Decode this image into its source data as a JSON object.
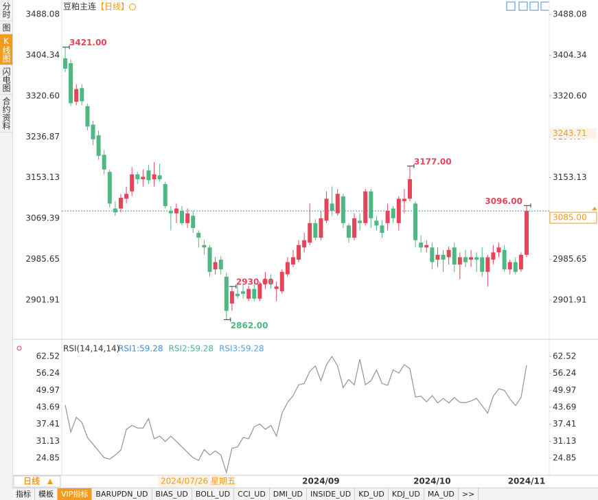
{
  "sidebar_tabs": [
    "分时",
    "图",
    "K线图",
    "闪电图",
    "合约资料"
  ],
  "header": {
    "symbol": "豆粕主连",
    "period": "【日线】"
  },
  "footer": {
    "period_button": "日线",
    "cursor_date": "2024/07/26 星期五",
    "tabs": [
      "指标",
      "模板",
      "VIP指标",
      "BARUPDN_UD",
      "BIAS_UD",
      "BOLL_UD",
      "CCI_UD",
      "DMI_UD",
      "INSIDE_UD",
      "KD_UD",
      "KDJ_UD",
      "MA_UD",
      ">>"
    ]
  },
  "chart_data": [
    {
      "type": "candlestick",
      "categories": [
        null,
        null,
        null,
        null,
        null,
        null,
        null,
        null,
        null,
        null,
        null,
        null,
        null,
        null,
        null,
        null,
        null,
        null,
        null,
        null,
        null,
        null,
        null,
        null,
        null,
        null,
        null,
        null,
        null,
        null,
        null,
        null,
        null,
        null,
        null,
        null,
        null,
        null,
        null,
        null,
        null,
        null,
        null,
        "2024/09",
        null,
        null,
        null,
        null,
        null,
        null,
        null,
        null,
        null,
        null,
        null,
        null,
        null,
        null,
        null,
        null,
        null,
        null,
        null,
        "2024/10",
        null,
        null,
        null,
        null,
        null,
        null,
        null,
        null,
        null,
        null,
        null,
        null,
        null,
        null,
        null,
        null,
        "2024/11",
        null,
        null,
        null
      ],
      "open": [
        3398,
        3388,
        3309,
        3337,
        3300,
        3262,
        3240,
        3200,
        3165,
        3090,
        3090,
        3110,
        3125,
        3160,
        3150,
        3168,
        3150,
        3158,
        3140,
        3085,
        3080,
        3085,
        3060,
        3075,
        3040,
        3015,
        3010,
        2965,
        2985,
        2950,
        2895,
        2915,
        2920,
        2905,
        2925,
        2905,
        2935,
        2945,
        2925,
        2920,
        2955,
        2975,
        2985,
        3010,
        3020,
        3060,
        3030,
        3065,
        3100,
        3080,
        3115,
        3055,
        3030,
        3065,
        3060,
        3125,
        3065,
        3055,
        3060,
        3090,
        3060,
        3105,
        3110,
        3100,
        3020,
        3010,
        3010,
        2985,
        2995,
        2990,
        3010,
        2975,
        2990,
        2985,
        2990,
        2990,
        2960,
        2985,
        3000,
        3005,
        2965,
        2980,
        2965,
        2995
      ],
      "high": [
        3421,
        3395,
        3345,
        3345,
        3305,
        3270,
        3250,
        3210,
        3170,
        3105,
        3120,
        3135,
        3175,
        3165,
        3170,
        3180,
        3185,
        3182,
        3145,
        3095,
        3100,
        3095,
        3090,
        3085,
        3045,
        3025,
        3015,
        2990,
        2992,
        2958,
        2930,
        2935,
        2935,
        2932,
        2935,
        2940,
        2960,
        2955,
        2940,
        2965,
        2990,
        3005,
        3025,
        3040,
        3100,
        3068,
        3085,
        3125,
        3135,
        3130,
        3120,
        3060,
        3080,
        3080,
        3130,
        3130,
        3075,
        3065,
        3100,
        3095,
        3115,
        3130,
        3177,
        3105,
        3035,
        3025,
        3020,
        3010,
        3005,
        3012,
        3020,
        3000,
        3005,
        3005,
        3000,
        3010,
        2995,
        3015,
        3020,
        3015,
        2985,
        2990,
        3000,
        3096
      ],
      "low": [
        3370,
        3300,
        3302,
        3302,
        3250,
        3220,
        3190,
        3160,
        3092,
        3075,
        3082,
        3100,
        3115,
        3140,
        3135,
        3140,
        3135,
        3145,
        3090,
        3045,
        3060,
        3055,
        3050,
        3040,
        3010,
        2995,
        2950,
        2955,
        2955,
        2862,
        2880,
        2905,
        2905,
        2900,
        2900,
        2900,
        2925,
        2925,
        2900,
        2915,
        2950,
        2970,
        2980,
        3000,
        3015,
        3025,
        3025,
        3060,
        3075,
        3075,
        3050,
        3020,
        3025,
        3045,
        3055,
        3050,
        3045,
        3030,
        3045,
        3060,
        3045,
        3080,
        3105,
        3010,
        3000,
        3000,
        2965,
        2970,
        2960,
        2975,
        2960,
        2945,
        2970,
        2970,
        2960,
        2950,
        2930,
        2975,
        2990,
        2960,
        2955,
        2955,
        2960,
        2990
      ],
      "close": [
        3377,
        3306,
        3335,
        3310,
        3258,
        3232,
        3198,
        3170,
        3100,
        3082,
        3112,
        3120,
        3160,
        3150,
        3155,
        3148,
        3160,
        3150,
        3095,
        3080,
        3090,
        3060,
        3080,
        3050,
        3030,
        3010,
        2960,
        2980,
        2965,
        2880,
        2920,
        2910,
        2915,
        2925,
        2905,
        2935,
        2945,
        2935,
        2930,
        2960,
        2980,
        2990,
        3015,
        3025,
        3060,
        3030,
        3070,
        3110,
        3085,
        3120,
        3060,
        3030,
        3070,
        3060,
        3125,
        3070,
        3055,
        3040,
        3085,
        3070,
        3110,
        3110,
        3150,
        3025,
        3010,
        3015,
        2980,
        2995,
        2985,
        3005,
        2975,
        2990,
        2980,
        2990,
        2985,
        2960,
        2990,
        3000,
        3010,
        2965,
        2980,
        2960,
        2995,
        3085
      ],
      "up_color": "#e5455b",
      "down_color": "#4fb781",
      "ylim": [
        2827.3,
        3503.6
      ],
      "yticks": [
        2901.91,
        2985.65,
        3069.39,
        3153.13,
        3236.87,
        {
          "value": 3320.6,
          "label": "3320.60"
        },
        3404.34,
        3488.08
      ],
      "annotations": [
        {
          "value": 3421,
          "label": "3421.00"
        },
        {
          "value": 2862,
          "label": "2862.00"
        },
        {
          "value": 3177,
          "label": "3177.00"
        },
        {
          "value": 3096,
          "label": "3096.00"
        },
        {
          "value": 2930,
          "label": "2930.00"
        }
      ],
      "last_price": {
        "value": 3085,
        "label": "3085.00"
      },
      "cursor_price": {
        "value": 3243.71,
        "label": "3243.71"
      }
    },
    {
      "type": "line",
      "title": "RSI(14,14,14)",
      "color": "#9a9a9a",
      "legend": [
        {
          "label": "RSI1:59.28",
          "color": "#3d8fd9"
        },
        {
          "label": "RSI2:59.28",
          "color": "#45b59f"
        },
        {
          "label": "RSI3:59.28",
          "color": "#5a9fdb"
        }
      ],
      "values": [
        44.5,
        34.5,
        40,
        38,
        32.5,
        30,
        27.5,
        25,
        24.5,
        26,
        27.8,
        35.5,
        37,
        36,
        36,
        39.5,
        32,
        33,
        31,
        33,
        31,
        29,
        27,
        25,
        24,
        28,
        26,
        27.5,
        26,
        19.5,
        28.5,
        29,
        32.5,
        32,
        36.5,
        37.5,
        35.5,
        37,
        33,
        41.5,
        45.5,
        48,
        52,
        52.5,
        57,
        59,
        53.5,
        59.5,
        62.5,
        59,
        51,
        54,
        52,
        61.5,
        52,
        53.5,
        57.5,
        52.5,
        51.8,
        57.6,
        56.3,
        59.5,
        58,
        47.5,
        47.8,
        45.7,
        48,
        45.3,
        47,
        45.3,
        47.3,
        45.5,
        45.4,
        46,
        47,
        44.3,
        41.5,
        47.8,
        50.5,
        50,
        46.8,
        44.3,
        47.3,
        59.28
      ],
      "ylim": [
        19.0,
        66.08
      ],
      "yticks": [
        24.85,
        31.13,
        37.41,
        43.69,
        49.97,
        56.24,
        62.52
      ]
    }
  ]
}
